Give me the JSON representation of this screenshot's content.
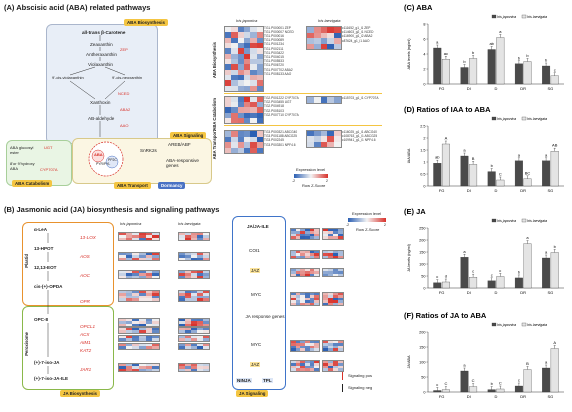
{
  "panel_A": {
    "title": "(A) Abscisic acid (ABA) related pathways",
    "tags": {
      "biosynthesis": "ABA Biosynthesis",
      "signaling": "ABA Signaling",
      "catabolism": "ABA Catabolism",
      "transport": "ABA Transport",
      "dormancy": "Dormancy"
    },
    "pathway": {
      "carotene": "all-trans β-Carotene",
      "zeaxanthin": "Zeaxanthin",
      "antheraxanthin": "Antheraxanthin",
      "violaxanthin": "Violaxanthin",
      "neox_left": "9'-cis-violaxanthin",
      "neox_right": "9'-cis-neoxanthin",
      "xanthoxin": "Xanthoxin",
      "ab_ald": "AB-aldehyde",
      "aba": "ABA",
      "aba_glucosyl": "ABA glucosyl ester",
      "hydroxy": "8'or 9'hydroxy ABA",
      "snrk": "SnRK2s",
      "areb": "AREB/ABF",
      "responsive": "ABA-responsive genes",
      "zep": "ZEP",
      "nced": "NCED",
      "aba2": "ABA2",
      "aao": "AAO",
      "pyl": "PYR/PYL",
      "pp2c": "PP2C",
      "cyp": "CYP707A",
      "ugt": "UGT"
    },
    "heatmap_headers": {
      "japonica": "Iris japonica",
      "laevigata": "Iris laevigata"
    },
    "section_labels": {
      "bio": "ABA Biosynthesis",
      "cat": "ABA Catabolism",
      "trans": "ABA Transport"
    },
    "genes_left": [
      "TG1.P000001 ZEP",
      "TG1.P000007 NCED",
      "TG1.P000016",
      "TG1.P000089",
      "TG1.P001234",
      "TG1.P002111",
      "TG1.P003422",
      "TG1.P004015",
      "TG1.P005533",
      "TG1.P006720",
      "TG1.P007702 ABA2",
      "TG1.P008133 AAO"
    ],
    "genes_right": [
      "c111652_g1_i1 ZEP",
      "c114603_g2_i1 NCED",
      "c116900_g1_i2 ABA2",
      "c87624_g1_i1 AAO"
    ],
    "cat_genes_left": [
      "TG2.P001222 CYP707A",
      "TG2.P003455 UGT",
      "TG2.P004918",
      "TG2.P005103",
      "TG2.P007710 CYP707A"
    ],
    "cat_genes_right": [
      "c115703_g1_i1 CYP707A"
    ],
    "trans_genes_left": [
      "TG3.P000321 ABCG40",
      "TG3.P001188 ABCG25",
      "TG3.P002245",
      "TG3.P003301 NPF4.6"
    ],
    "trans_genes_right": [
      "c116025_g1_i1 ABCG40",
      "c108763_g1_i1 ABCG25",
      "c109941_g1_i1 NPF4.6"
    ],
    "legend_title": "Expression level",
    "legend_sub": "Row Z-Score",
    "legend_min": "-2",
    "legend_max": "2"
  },
  "panel_B": {
    "title": "(B) Jasmonic acid (JA) biosynthesis and signaling pathways",
    "plastid": "Plastid",
    "peroxisome": "Peroxisome",
    "bio_tag": "JA Biosynthesis",
    "sig_tag": "JA Signaling",
    "steps": [
      "α-LeA",
      "13-HPOT",
      "12,13-EOT",
      "cis-(+)-OPDA",
      "OPC-8",
      "(+)-7-iso-JA",
      "(+)-7-iso-JA-ILE"
    ],
    "enzymes": [
      "13-LOX",
      "AOS",
      "AOC",
      "OPR",
      "OPCL1",
      "ACX",
      "AIM1",
      "KAT2",
      "JAR1"
    ],
    "signal": [
      "JA/JA-ILE",
      "COI1",
      "JAZ",
      "MYC",
      "JA response genes",
      "MYC",
      "JAZ",
      "NINJA",
      "TPL"
    ],
    "heat_headers": {
      "japonica": "Iris japonica",
      "laevigata": "Iris laevigata"
    },
    "legend_title": "Expression level",
    "legend_sub": "Row Z-Score",
    "legend_min": "-2",
    "legend_max": "2",
    "signal_pos": "Signaling pos",
    "signal_neg": "Signaling neg"
  },
  "charts": {
    "categories": [
      "FG",
      "DI",
      "D",
      "DR",
      "SG"
    ],
    "legend": [
      "Iris japonica",
      "Iris laevigata"
    ]
  },
  "chart_data": [
    {
      "type": "bar",
      "title": "(C) ABA",
      "ylabel": "ABA levels (ng/ml)",
      "categories": [
        "FG",
        "DI",
        "D",
        "DR",
        "SG"
      ],
      "series": [
        {
          "name": "Iris japonica",
          "values": [
            4.8,
            2.2,
            4.6,
            2.7,
            2.4
          ]
        },
        {
          "name": "Iris laevigata",
          "values": [
            3.3,
            3.4,
            6.2,
            3.0,
            1.1
          ]
        }
      ],
      "letters": [
        [
          "a",
          "ac"
        ],
        [
          "b",
          "b"
        ],
        [
          "ab",
          "a"
        ],
        [
          "b",
          "b"
        ],
        [
          "b",
          "c"
        ]
      ],
      "ylim": [
        0,
        8
      ],
      "yticks": [
        0,
        2,
        4,
        6,
        8
      ]
    },
    {
      "type": "bar",
      "title": "(D) Ratios of IAA to ABA",
      "ylabel": "IAA/ABA",
      "categories": [
        "FG",
        "DI",
        "D",
        "DR",
        "SG"
      ],
      "series": [
        {
          "name": "Iris japonica",
          "values": [
            0.95,
            1.25,
            0.6,
            1.05,
            1.05
          ]
        },
        {
          "name": "Iris laevigata",
          "values": [
            1.75,
            0.9,
            0.25,
            0.3,
            1.45
          ]
        }
      ],
      "letters": [
        [
          "ab",
          "A"
        ],
        [
          "a",
          "B"
        ],
        [
          "b",
          "C"
        ],
        [
          "a",
          "BC"
        ],
        [
          "a",
          "AB"
        ]
      ],
      "ylim": [
        0,
        2.5
      ],
      "yticks": [
        0.0,
        0.5,
        1.0,
        1.5,
        2.0,
        2.5
      ]
    },
    {
      "type": "bar",
      "title": "(E) JA",
      "ylabel": "JA levels (ng/ml)",
      "categories": [
        "FG",
        "DI",
        "D",
        "DR",
        "SG"
      ],
      "series": [
        {
          "name": "Iris japonica",
          "values": [
            22,
            128,
            30,
            42,
            125
          ]
        },
        {
          "name": "Iris laevigata",
          "values": [
            25,
            45,
            48,
            185,
            148
          ]
        }
      ],
      "letters": [
        [
          "c",
          "d"
        ],
        [
          "a",
          "c"
        ],
        [
          "c",
          "c"
        ],
        [
          "b",
          "a"
        ],
        [
          "a",
          "b"
        ]
      ],
      "ylim": [
        0,
        250
      ],
      "yticks": [
        0,
        50,
        100,
        150,
        200,
        250
      ]
    },
    {
      "type": "bar",
      "title": "(F) Ratios of JA to ABA",
      "ylabel": "JA/ABA",
      "categories": [
        "FG",
        "DI",
        "D",
        "DR",
        "SG"
      ],
      "series": [
        {
          "name": "Iris japonica",
          "values": [
            5,
            70,
            8,
            20,
            80
          ]
        },
        {
          "name": "Iris laevigata",
          "values": [
            8,
            18,
            10,
            75,
            145
          ]
        }
      ],
      "letters": [
        [
          "c",
          "C"
        ],
        [
          "a",
          "C"
        ],
        [
          "b",
          "C"
        ],
        [
          "c",
          "B"
        ],
        [
          "a",
          "A"
        ]
      ],
      "ylim": [
        0,
        200
      ],
      "yticks": [
        0,
        50,
        100,
        150,
        200
      ]
    }
  ],
  "colors": {
    "japonica": "#4a4a4a",
    "laevigata": "#e4e4e4",
    "heat_low": "#2b5fb3",
    "heat_mid": "#f3f3f3",
    "heat_high": "#d8312a",
    "tag_yellow": "#f4c542",
    "tag_blue": "#4a72c4",
    "bio_box": "#e8eef7",
    "sig_box": "#fbf6e3",
    "cat_box": "#e9f5e4",
    "plastid_border": "#e8922e",
    "perox_border": "#8ab84a",
    "jsig_border": "#3f74c9"
  }
}
